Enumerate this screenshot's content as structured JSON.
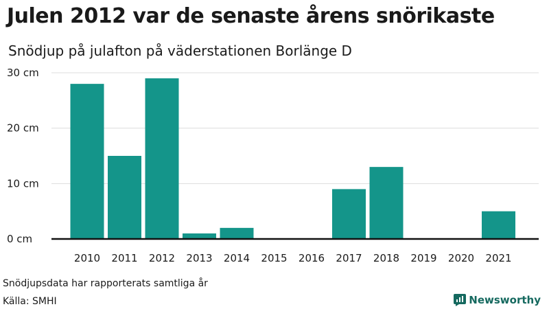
{
  "header": {
    "title": "Julen 2012 var de senaste årens snörikaste",
    "subtitle": "Snödjup på julafton på väderstationen Borlänge D"
  },
  "footer": {
    "note": "Snödjupsdata har rapporterats samtliga år",
    "source": "Källa: SMHI",
    "brand": "Newsworthy"
  },
  "colors": {
    "bar": "#14958a",
    "grid": "#dddddd",
    "axis": "#111111",
    "brand": "#15695f"
  },
  "icons": {
    "brand_logo": "newsworthy-logo-icon"
  },
  "chart_data": {
    "type": "bar",
    "categories": [
      "2010",
      "2011",
      "2012",
      "2013",
      "2014",
      "2015",
      "2016",
      "2017",
      "2018",
      "2019",
      "2020",
      "2021"
    ],
    "values": [
      28,
      15,
      29,
      1,
      2,
      0,
      0,
      9,
      13,
      0,
      0,
      5
    ],
    "y_ticks": [
      0,
      10,
      20,
      30
    ],
    "y_tick_labels": [
      "0 cm",
      "10 cm",
      "20 cm",
      "30 cm"
    ],
    "ylim": [
      0,
      30
    ],
    "grid": true,
    "legend": "none"
  }
}
